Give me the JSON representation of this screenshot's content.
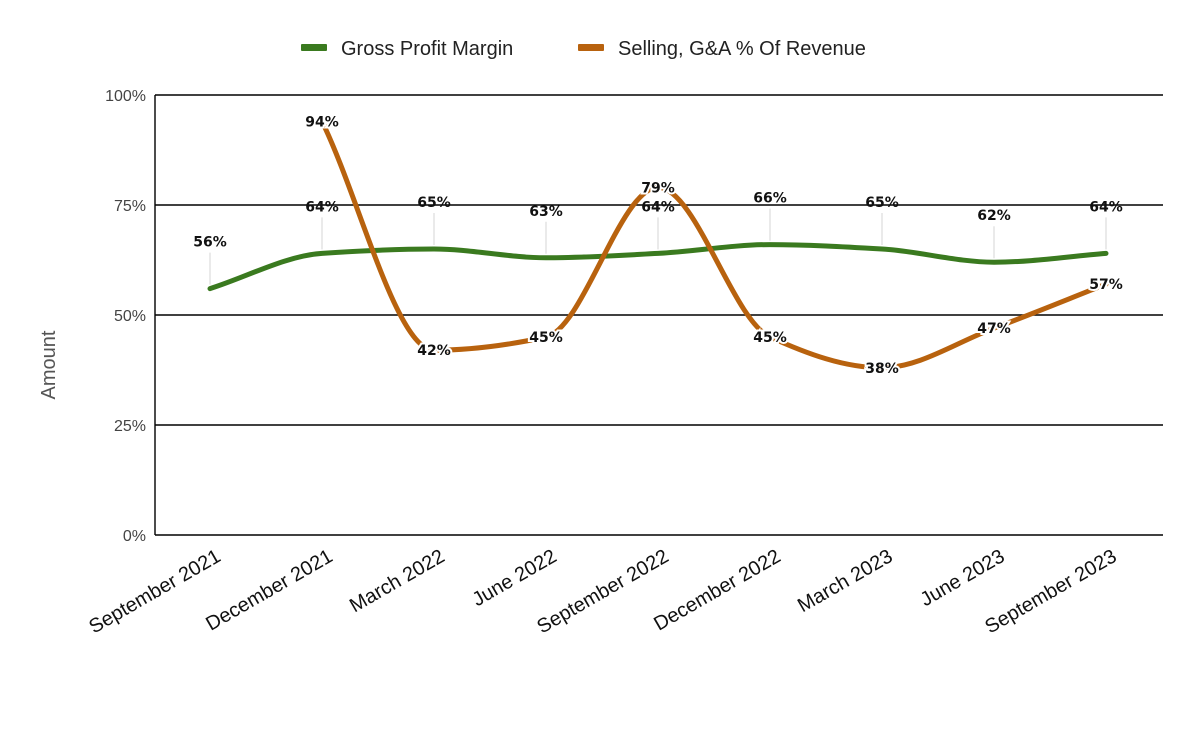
{
  "chart_data": {
    "type": "line",
    "categories": [
      "September 2021",
      "December 2021",
      "March 2022",
      "June 2022",
      "September 2022",
      "December 2022",
      "March 2023",
      "June 2023",
      "September 2023"
    ],
    "series": [
      {
        "name": "Gross Profit Margin",
        "color": "#3a7a1f",
        "values": [
          56,
          64,
          65,
          63,
          64,
          66,
          65,
          62,
          64
        ],
        "labels": [
          "56%",
          "64%",
          "65%",
          "63%",
          "64%",
          "66%",
          "65%",
          "62%",
          "64%"
        ]
      },
      {
        "name": "Selling, G&A % Of Revenue",
        "color": "#b8620e",
        "values": [
          null,
          94,
          42,
          45,
          79,
          45,
          38,
          47,
          57
        ],
        "labels": [
          null,
          "94%",
          "42%",
          "45%",
          "79%",
          "45%",
          "38%",
          "47%",
          "57%"
        ]
      }
    ],
    "ylabel": "Amount",
    "ylim": [
      0,
      100
    ],
    "yticks": [
      "0%",
      "25%",
      "50%",
      "75%",
      "100%"
    ],
    "grid": true,
    "legend": "top-center"
  }
}
